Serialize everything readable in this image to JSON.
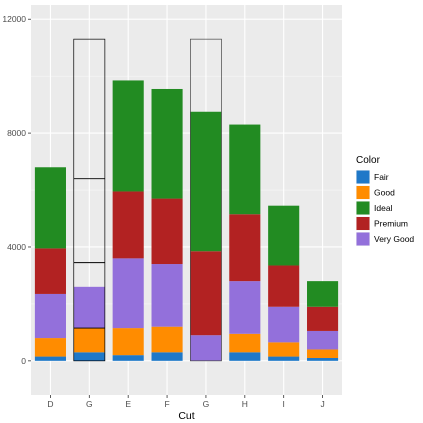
{
  "chart_data": {
    "type": "bar",
    "stacked": true,
    "categories": [
      "D",
      "G",
      "E",
      "F",
      "G",
      "H",
      "I",
      "J"
    ],
    "xlabel": "Cut",
    "ylabel": "",
    "ylim": [
      -1200,
      12500
    ],
    "yticks": [
      0,
      4000,
      8000,
      12000
    ],
    "ytick_labels": [
      "0",
      "4000",
      "8000",
      "12000"
    ],
    "grid": true,
    "legend": {
      "title": "Color",
      "position": "right"
    },
    "series": [
      {
        "name": "Fair",
        "color": "#1f78c8",
        "values": [
          150,
          300,
          200,
          300,
          0,
          300,
          150,
          100
        ]
      },
      {
        "name": "Good",
        "color": "#ff8c00",
        "values": [
          650,
          850,
          950,
          900,
          0,
          650,
          500,
          300
        ]
      },
      {
        "name": "Premium",
        "color": "#b22222",
        "values": [
          1600,
          0,
          2350,
          2300,
          2950,
          2350,
          1450,
          850
        ]
      },
      {
        "name": "Very Good",
        "color": "#9370db",
        "values": [
          1550,
          1450,
          2450,
          2200,
          900,
          1850,
          1250,
          650
        ]
      },
      {
        "name": "Ideal",
        "color": "#228b22",
        "values": [
          2850,
          0,
          3900,
          3850,
          4900,
          3150,
          2100,
          900
        ]
      }
    ],
    "stack_order": [
      "Fair",
      "Good",
      "Very Good",
      "Premium",
      "Ideal"
    ],
    "outline_bars": [
      {
        "category_index": 1,
        "top": 11300,
        "dividers": [
          1150,
          3450,
          6400
        ]
      },
      {
        "category_index": 4,
        "top": 11300,
        "dividers": []
      }
    ]
  }
}
